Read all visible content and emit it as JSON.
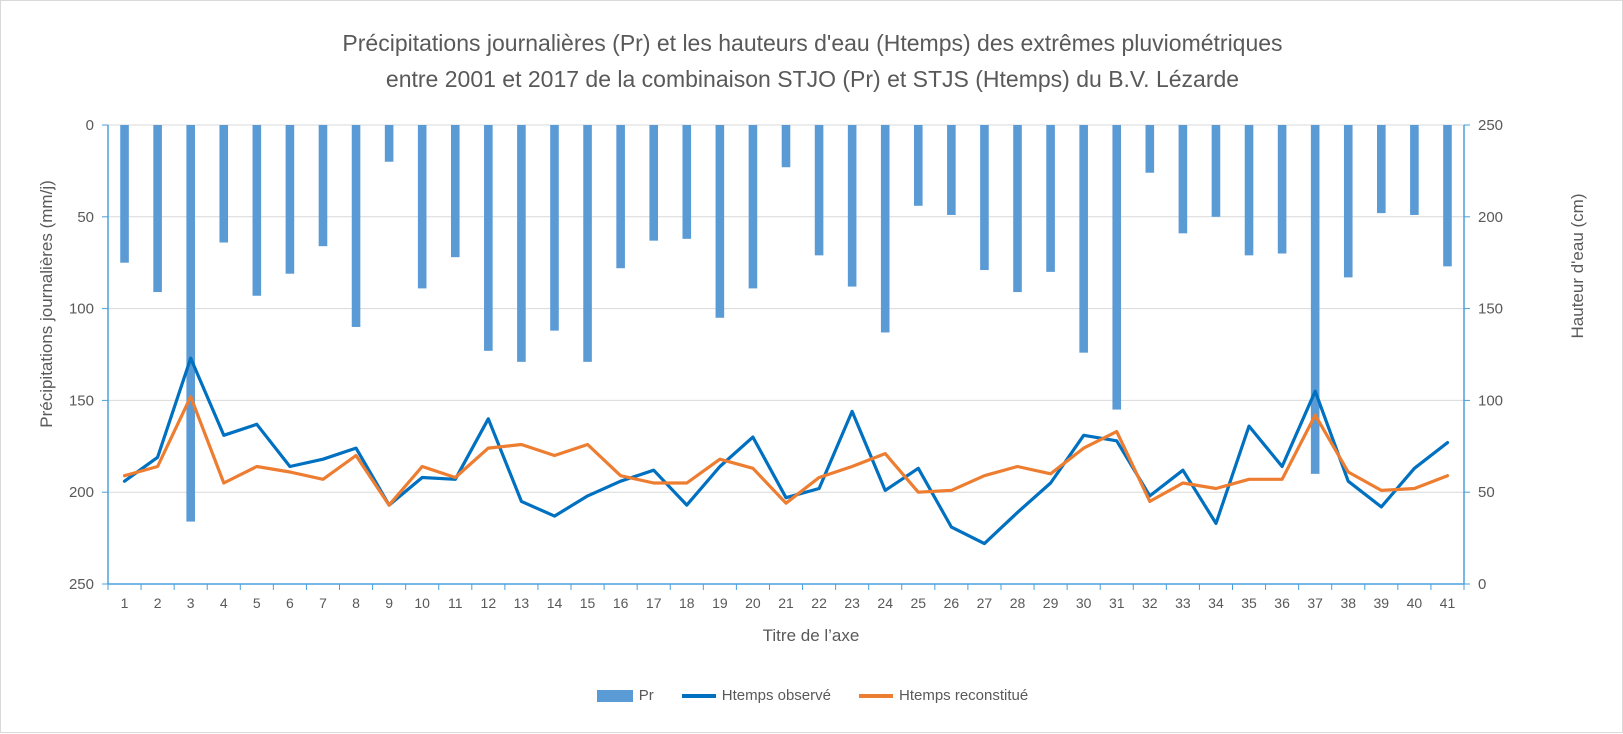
{
  "chart_data": {
    "type": "bar+line",
    "title_line1": "Précipitations journalières (Pr) et les hauteurs d'eau (Htemps) des extrêmes pluviométriques",
    "title_line2": "entre 2001 et 2017 de la combinaison STJO (Pr) et STJS (Htemps) du B.V. Lézarde",
    "xlabel": "Titre de l’axe",
    "ylabel_left": "Précipitations journalières (mm/j)",
    "ylabel_right": "Hauteur d'eau (cm)",
    "ylim_left": [
      0,
      250
    ],
    "ylim_left_reversed": true,
    "ylim_right": [
      0,
      250
    ],
    "yticks_left": [
      0,
      50,
      100,
      150,
      200,
      250
    ],
    "yticks_right": [
      0,
      50,
      100,
      150,
      200,
      250
    ],
    "grid": true,
    "legend_position": "bottom",
    "categories": [
      "1",
      "2",
      "3",
      "4",
      "5",
      "6",
      "7",
      "8",
      "9",
      "10",
      "11",
      "12",
      "13",
      "14",
      "15",
      "16",
      "17",
      "18",
      "19",
      "20",
      "21",
      "22",
      "23",
      "24",
      "25",
      "26",
      "27",
      "28",
      "29",
      "30",
      "31",
      "32",
      "33",
      "34",
      "35",
      "36",
      "37",
      "38",
      "39",
      "40",
      "41"
    ],
    "series": [
      {
        "name": "Pr",
        "kind": "bar",
        "axis": "left",
        "color": "#5b9bd5",
        "values": [
          75,
          91,
          216,
          64,
          93,
          81,
          66,
          110,
          20,
          89,
          72,
          123,
          129,
          112,
          129,
          78,
          63,
          62,
          105,
          89,
          23,
          71,
          88,
          113,
          44,
          49,
          79,
          91,
          80,
          124,
          155,
          26,
          59,
          50,
          71,
          70,
          190,
          83,
          48,
          49,
          77
        ]
      },
      {
        "name": "Htemps observé",
        "kind": "line",
        "axis": "right",
        "color": "#0070c0",
        "values": [
          56,
          69,
          123,
          81,
          87,
          64,
          68,
          74,
          43,
          58,
          57,
          90,
          45,
          37,
          48,
          56,
          62,
          43,
          64,
          80,
          47,
          52,
          94,
          51,
          63,
          31,
          22,
          39,
          55,
          81,
          78,
          48,
          62,
          33,
          86,
          64,
          105,
          56,
          42,
          63,
          77
        ]
      },
      {
        "name": "Htemps reconstitué",
        "kind": "line",
        "axis": "right",
        "color": "#ed7d31",
        "values": [
          59,
          64,
          102,
          55,
          64,
          61,
          57,
          70,
          43,
          64,
          58,
          74,
          76,
          70,
          76,
          59,
          55,
          55,
          68,
          63,
          44,
          58,
          64,
          71,
          50,
          51,
          59,
          64,
          60,
          74,
          83,
          45,
          55,
          52,
          57,
          57,
          92,
          61,
          51,
          52,
          59
        ]
      }
    ]
  }
}
